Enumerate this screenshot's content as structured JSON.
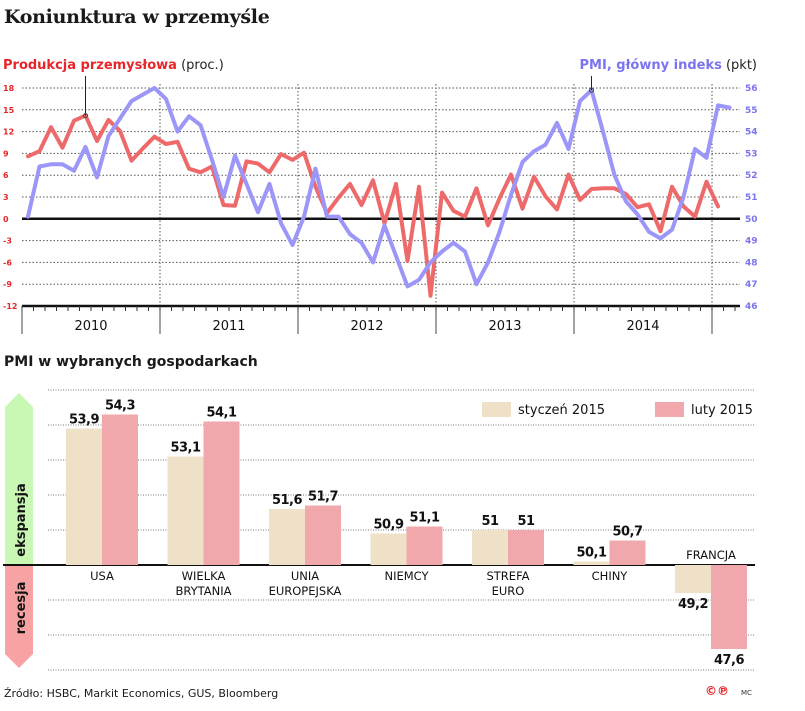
{
  "title": "Koniunktura w przemyśle",
  "footer": {
    "source": "Źródło: HSBC, Markit Economics, GUS, Bloomberg",
    "copyright_icons": "©℗",
    "author": "MC"
  },
  "chart_data": [
    {
      "type": "line",
      "title": "Koniunktura w przemyśle",
      "x_label_years": [
        "2010",
        "2011",
        "2012",
        "2013",
        "2014"
      ],
      "x_start": "2010-01",
      "x_unit": "month",
      "left_axis": {
        "label": "Produkcja przemysłowa",
        "unit": "(proc.)",
        "ticks": [
          18,
          15,
          12,
          9,
          6,
          3,
          0,
          -3,
          -6,
          -9,
          -12
        ],
        "ylim": [
          -12,
          18
        ]
      },
      "right_axis": {
        "label": "PMI, główny indeks",
        "unit": "(pkt)",
        "ticks": [
          56,
          55,
          54,
          53,
          52,
          51,
          50,
          49,
          48,
          47,
          46
        ],
        "ylim": [
          46,
          56
        ]
      },
      "grid": true,
      "series": [
        {
          "name": "Produkcja przemysłowa",
          "axis": "left",
          "color": "#ee6a6a",
          "values": [
            8.6,
            9.3,
            12.6,
            9.8,
            13.5,
            14.2,
            10.7,
            13.6,
            12.1,
            8.0,
            9.7,
            11.3,
            10.3,
            10.6,
            6.9,
            6.4,
            7.2,
            1.9,
            1.8,
            7.9,
            7.6,
            6.4,
            8.9,
            8.1,
            9.1,
            4.4,
            0.8,
            2.9,
            4.8,
            1.9,
            5.3,
            -0.6,
            4.8,
            -5.8,
            4.4,
            -10.6,
            3.6,
            1.1,
            0.3,
            4.2,
            -0.9,
            2.8,
            6.1,
            1.4,
            5.8,
            3.1,
            1.3,
            6.1,
            2.6,
            4.1,
            4.2,
            4.2,
            3.4,
            1.6,
            2.0,
            -1.7,
            4.4,
            1.7,
            0.3,
            5.1,
            1.7
          ],
          "highlight_index": 5
        },
        {
          "name": "PMI, główny indeks",
          "axis": "right",
          "color": "#9b96f7",
          "values": [
            50.1,
            52.4,
            52.5,
            52.5,
            52.2,
            53.3,
            51.9,
            53.8,
            54.6,
            55.4,
            55.7,
            56.0,
            55.5,
            54.0,
            54.7,
            54.3,
            52.7,
            51.0,
            52.9,
            51.6,
            50.3,
            51.6,
            49.8,
            48.8,
            50.1,
            52.3,
            50.1,
            50.1,
            49.3,
            48.9,
            48.0,
            49.7,
            48.3,
            46.9,
            47.2,
            48.0,
            48.5,
            48.9,
            48.5,
            47.0,
            48.0,
            49.4,
            51.1,
            52.6,
            53.1,
            53.4,
            54.4,
            53.2,
            55.4,
            55.9,
            54.0,
            52.0,
            50.8,
            50.2,
            49.4,
            49.1,
            49.5,
            51.0,
            53.2,
            52.8,
            55.2,
            55.1
          ],
          "highlight_index": 49
        }
      ]
    },
    {
      "type": "bar",
      "title": "PMI w wybranych gospodarkach",
      "categories": [
        "USA",
        "WIELKA BRYTANIA",
        "UNIA EUROPEJSKA",
        "NIEMCY",
        "STREFA EURO",
        "CHINY",
        "FRANCJA"
      ],
      "category_lines": [
        [
          "USA"
        ],
        [
          "WIELKA",
          "BRYTANIA"
        ],
        [
          "UNIA",
          "EUROPEJSKA"
        ],
        [
          "NIEMCY"
        ],
        [
          "STREFA",
          "EURO"
        ],
        [
          "CHINY"
        ],
        [
          "FRANCJA"
        ]
      ],
      "baseline": 50,
      "ylim": [
        47,
        55
      ],
      "series": [
        {
          "name": "styczeń 2015",
          "color": "#efe0c8",
          "values": [
            53.9,
            53.1,
            51.6,
            50.9,
            51,
            50.1,
            49.2
          ],
          "labels": [
            "53,9",
            "53,1",
            "51,6",
            "50,9",
            "51",
            "50,1",
            "49,2"
          ]
        },
        {
          "name": "luty 2015",
          "color": "#f1a8ac",
          "values": [
            54.3,
            54.1,
            51.7,
            51.1,
            51,
            50.7,
            47.6
          ],
          "labels": [
            "54,3",
            "54,1",
            "51,7",
            "51,1",
            "51",
            "50,7",
            "47,6"
          ]
        }
      ],
      "side_labels": {
        "up": "ekspansja",
        "down": "recesja",
        "up_color": "#c9f8b5",
        "down_color": "#f7a3a3"
      },
      "grid": true,
      "legend": "top-right"
    }
  ]
}
